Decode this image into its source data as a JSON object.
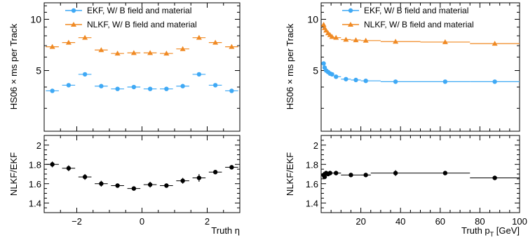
{
  "colors": {
    "ekf": "#3fa9f5",
    "nlkf": "#f08a24",
    "ratio": "#000000"
  },
  "chart_data": [
    {
      "type": "scatter",
      "panel": "top-left",
      "ylabel": "HS06 × ms per Track",
      "xlim": [
        -3,
        3
      ],
      "ylim": [
        2.2,
        12.5
      ],
      "yticks": [
        5,
        10
      ],
      "yscale": "log",
      "legend_position": "top",
      "series": [
        {
          "name": "EKF, W/ B field and material",
          "x": [
            -2.75,
            -2.25,
            -1.75,
            -1.25,
            -0.75,
            -0.25,
            0.25,
            0.75,
            1.25,
            1.75,
            2.25,
            2.75
          ],
          "y": [
            3.8,
            4.1,
            4.75,
            4.05,
            3.9,
            4.0,
            3.9,
            3.9,
            4.05,
            4.75,
            4.1,
            3.8
          ]
        },
        {
          "name": "NLKF, W/ B field and material",
          "x": [
            -2.75,
            -2.25,
            -1.75,
            -1.25,
            -0.75,
            -0.25,
            0.25,
            0.75,
            1.25,
            1.75,
            2.25,
            2.75
          ],
          "y": [
            6.9,
            7.3,
            7.8,
            6.6,
            6.3,
            6.35,
            6.35,
            6.3,
            6.7,
            7.8,
            7.3,
            6.9
          ]
        }
      ]
    },
    {
      "type": "scatter",
      "panel": "bottom-left",
      "ylabel": "NLKF/EKF",
      "xlabel": "Truth η",
      "xlim": [
        -3,
        3
      ],
      "ylim": [
        1.3,
        2.1
      ],
      "yticks": [
        1.4,
        1.6,
        1.8,
        2
      ],
      "yticklabels": [
        "1.4",
        "1.6",
        "1.8",
        "2"
      ],
      "xticks": [
        -2,
        0,
        2
      ],
      "xticklabels": [
        "−2",
        "0",
        "2"
      ],
      "series": [
        {
          "name": "",
          "x": [
            -2.75,
            -2.25,
            -1.75,
            -1.25,
            -0.75,
            -0.25,
            0.25,
            0.75,
            1.25,
            1.75,
            2.25,
            2.75
          ],
          "y": [
            1.8,
            1.76,
            1.67,
            1.6,
            1.58,
            1.55,
            1.59,
            1.58,
            1.63,
            1.66,
            1.72,
            1.77
          ],
          "yerr": [
            0.03,
            0.03,
            0.03,
            0.03,
            0.02,
            0.02,
            0.03,
            0.02,
            0.03,
            0.04,
            0.02,
            0.01
          ]
        }
      ]
    },
    {
      "type": "scatter",
      "panel": "top-right",
      "ylabel": "HS06 × ms per Track",
      "xlim": [
        0,
        100
      ],
      "ylim": [
        2.2,
        12.5
      ],
      "yticks": [
        5,
        10
      ],
      "yscale": "log",
      "legend_position": "top",
      "series": [
        {
          "name": "EKF, W/ B field and material",
          "x": [
            1.25,
            1.75,
            2.5,
            3.5,
            4.5,
            5.5,
            7.5,
            12.5,
            17.5,
            22.5,
            37.5,
            62.5,
            87.5
          ],
          "y": [
            5.5,
            5.2,
            5.0,
            4.9,
            4.8,
            4.75,
            4.6,
            4.45,
            4.4,
            4.35,
            4.3,
            4.3,
            4.3
          ]
        },
        {
          "name": "NLKF, W/ B field and material",
          "x": [
            1.25,
            1.75,
            2.5,
            3.5,
            4.5,
            5.5,
            7.5,
            12.5,
            17.5,
            22.5,
            37.5,
            62.5,
            87.5
          ],
          "y": [
            9.3,
            8.9,
            8.6,
            8.3,
            8.1,
            7.9,
            7.8,
            7.6,
            7.55,
            7.5,
            7.4,
            7.35,
            7.2
          ]
        }
      ]
    },
    {
      "type": "scatter",
      "panel": "bottom-right",
      "ylabel": "NLKF/EKF",
      "xlabel_main": "Truth p",
      "xlabel_sub": "T",
      "xlabel_unit": " [GeV]",
      "xlim": [
        0,
        100
      ],
      "ylim": [
        1.3,
        2.1
      ],
      "yticks": [
        1.4,
        1.6,
        1.8,
        2
      ],
      "yticklabels": [
        "1.4",
        "1.6",
        "1.8",
        "2"
      ],
      "xticks": [
        20,
        40,
        60,
        80,
        100
      ],
      "xticklabels": [
        "20",
        "40",
        "60",
        "80",
        "100"
      ],
      "series": [
        {
          "name": "",
          "x": [
            1.25,
            1.75,
            2.5,
            3.5,
            4.5,
            7.5,
            15,
            22.5,
            37.5,
            62.5,
            87.5
          ],
          "xerr": [
            0.25,
            0.25,
            0.5,
            0.5,
            0.5,
            2.5,
            5,
            2.5,
            12.5,
            12.5,
            12.5
          ],
          "y": [
            1.69,
            1.67,
            1.71,
            1.7,
            1.71,
            1.71,
            1.69,
            1.69,
            1.71,
            1.71,
            1.66
          ],
          "yerr": [
            0.03,
            0.02,
            0.02,
            0.02,
            0.02,
            0.01,
            0.01,
            0.01,
            0.03,
            0.02,
            0.01
          ]
        }
      ]
    }
  ]
}
